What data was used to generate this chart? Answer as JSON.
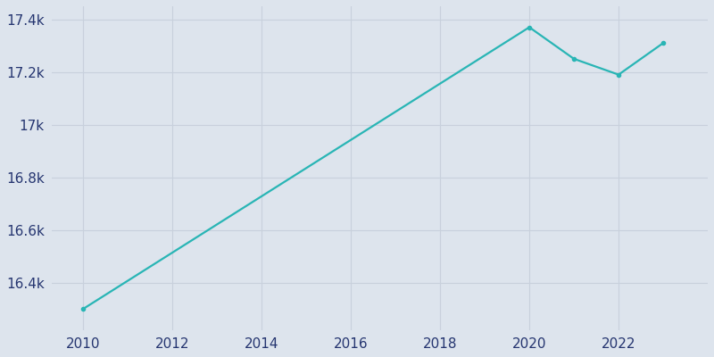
{
  "years": [
    2010,
    2020,
    2021,
    2022,
    2023
  ],
  "population": [
    16300,
    17370,
    17250,
    17190,
    17310
  ],
  "line_color": "#29b5b5",
  "background_color": "#dde4ed",
  "outer_background": "#dde4ed",
  "grid_color": "#c8d0dc",
  "tick_color": "#253570",
  "ylim": [
    16220,
    17450
  ],
  "yticks": [
    16400,
    16600,
    16800,
    17000,
    17200,
    17400
  ],
  "ytick_labels": [
    "16.4k",
    "16.6k",
    "16.8k",
    "17k",
    "17.2k",
    "17.4k"
  ],
  "xticks": [
    2010,
    2012,
    2014,
    2016,
    2018,
    2020,
    2022
  ],
  "xlim": [
    2009.3,
    2024.0
  ],
  "line_width": 1.6,
  "marker": "o",
  "marker_size": 3.0,
  "tick_fontsize": 11
}
